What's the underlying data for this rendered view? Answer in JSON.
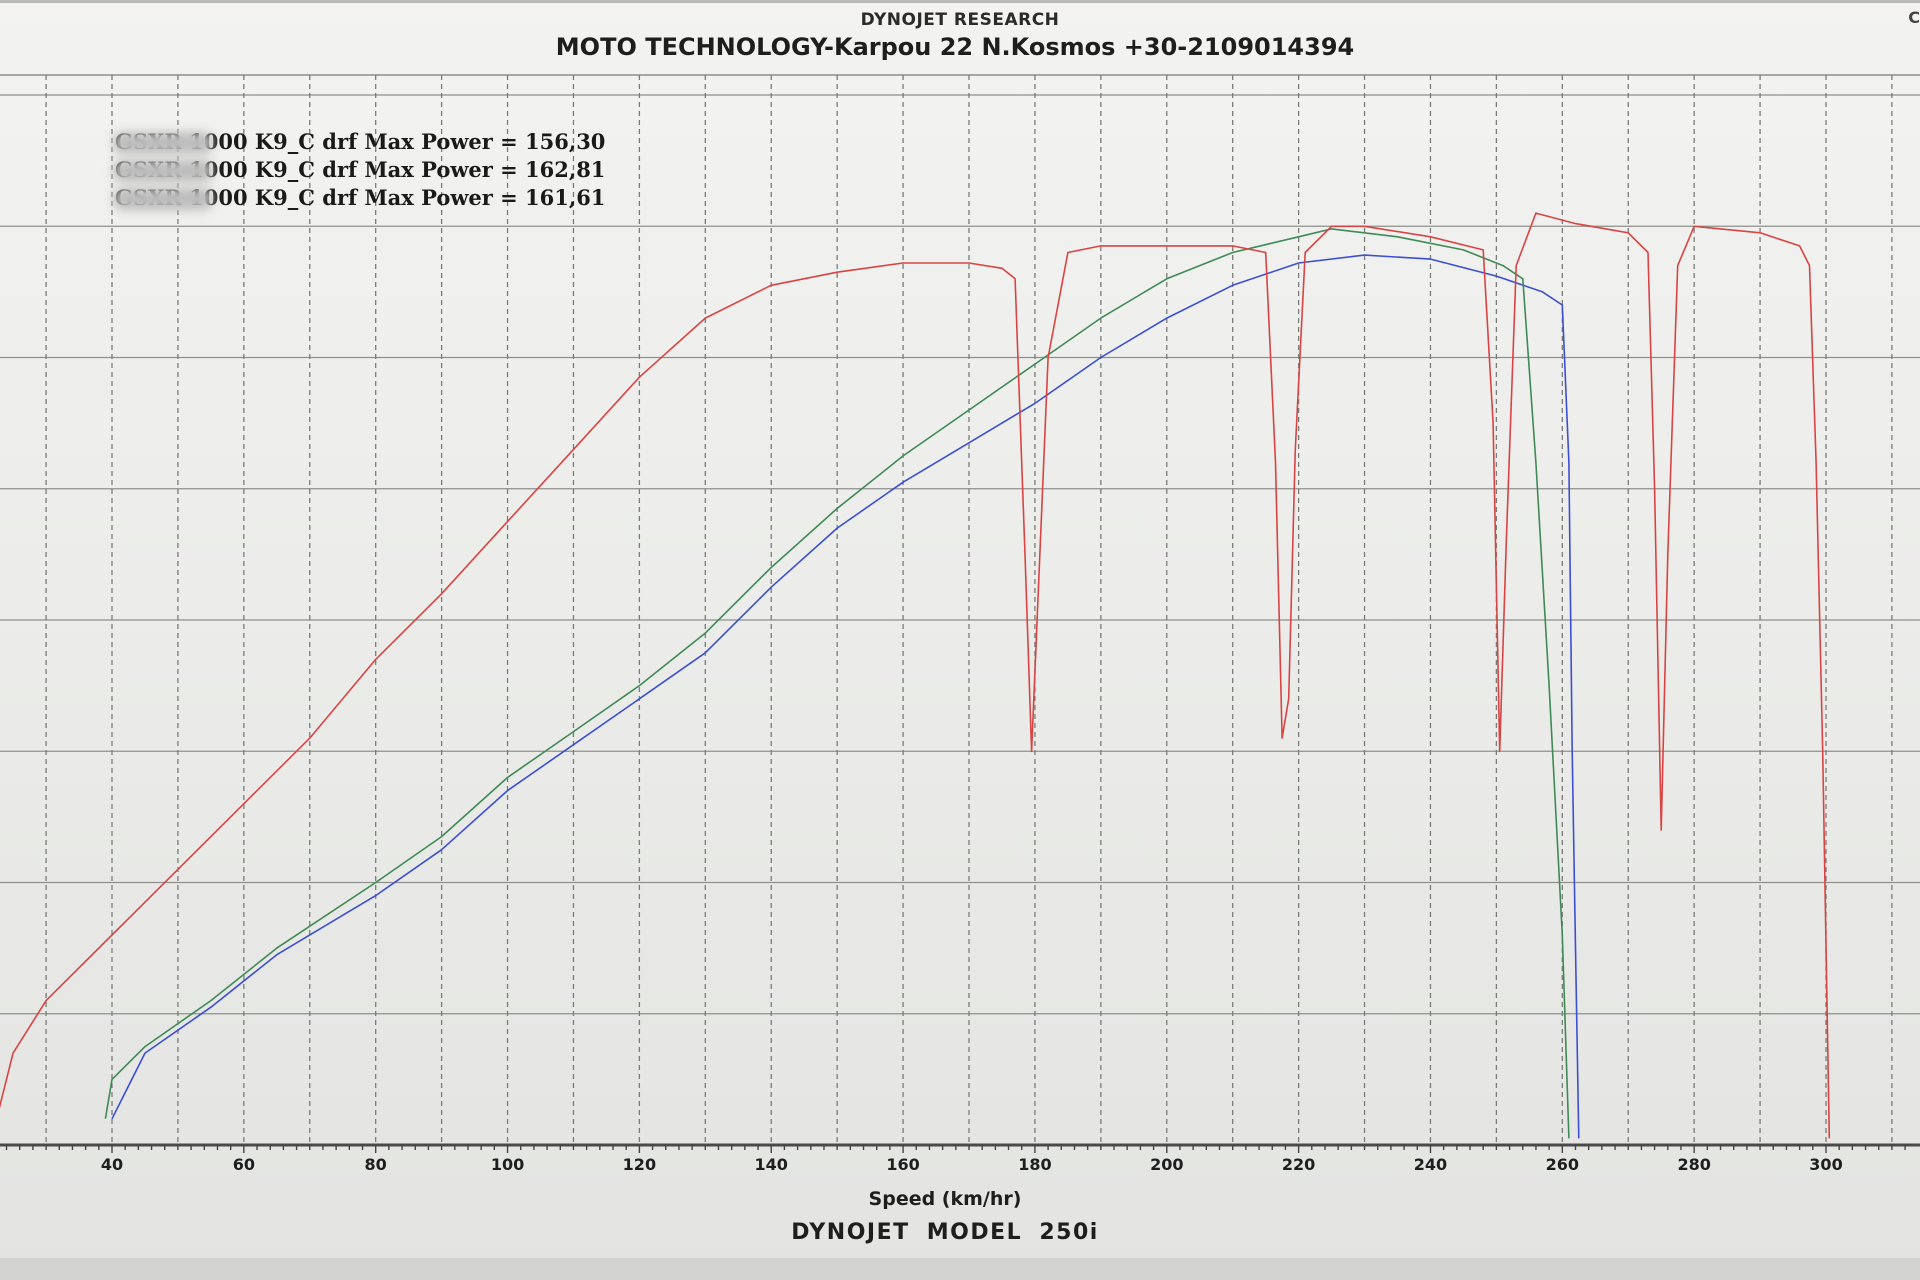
{
  "header": {
    "company": "DYNOJET RESEARCH",
    "corner_mark": "C"
  },
  "footer": {
    "model": "DYNOJET MODEL 250i"
  },
  "chart_data": {
    "type": "line",
    "title": "MOTO TECHNOLOGY-Karpou 22 N.Kosmos +30-2109014394",
    "xlabel": "Speed (km/hr)",
    "ylabel": "",
    "xlim": [
      22,
      312
    ],
    "ylim": [
      0,
      8
    ],
    "x_ticks": [
      40,
      60,
      80,
      100,
      120,
      140,
      160,
      180,
      200,
      220,
      240,
      260,
      280,
      300
    ],
    "grid": true,
    "legend_position": "top-left",
    "series": [
      {
        "name": "GSXR 1000 K9_C drf",
        "max_power_label": " Max Power = 156,30",
        "color": "#3c4fd0",
        "points": [
          [
            40,
            0.2
          ],
          [
            45,
            0.7
          ],
          [
            55,
            1.05
          ],
          [
            65,
            1.45
          ],
          [
            80,
            1.9
          ],
          [
            90,
            2.25
          ],
          [
            100,
            2.7
          ],
          [
            110,
            3.05
          ],
          [
            120,
            3.4
          ],
          [
            130,
            3.75
          ],
          [
            140,
            4.25
          ],
          [
            150,
            4.7
          ],
          [
            160,
            5.05
          ],
          [
            170,
            5.35
          ],
          [
            180,
            5.65
          ],
          [
            190,
            6.0
          ],
          [
            200,
            6.3
          ],
          [
            210,
            6.55
          ],
          [
            220,
            6.72
          ],
          [
            230,
            6.78
          ],
          [
            240,
            6.75
          ],
          [
            250,
            6.62
          ],
          [
            257,
            6.5
          ],
          [
            260,
            6.4
          ],
          [
            261,
            5.2
          ],
          [
            261.5,
            3
          ],
          [
            262,
            1.5
          ],
          [
            262.5,
            0.05
          ]
        ]
      },
      {
        "name": "GSXR 1000 K9_C drf",
        "max_power_label": " Max Power = 162,81",
        "color": "#3f8a55",
        "points": [
          [
            39,
            0.2
          ],
          [
            40,
            0.5
          ],
          [
            45,
            0.75
          ],
          [
            55,
            1.1
          ],
          [
            65,
            1.5
          ],
          [
            80,
            2.0
          ],
          [
            90,
            2.35
          ],
          [
            100,
            2.8
          ],
          [
            110,
            3.15
          ],
          [
            120,
            3.5
          ],
          [
            130,
            3.9
          ],
          [
            140,
            4.4
          ],
          [
            150,
            4.85
          ],
          [
            160,
            5.25
          ],
          [
            170,
            5.6
          ],
          [
            180,
            5.95
          ],
          [
            190,
            6.3
          ],
          [
            200,
            6.6
          ],
          [
            210,
            6.8
          ],
          [
            220,
            6.92
          ],
          [
            225,
            6.98
          ],
          [
            235,
            6.92
          ],
          [
            245,
            6.82
          ],
          [
            251,
            6.7
          ],
          [
            254,
            6.6
          ],
          [
            256,
            5.2
          ],
          [
            258,
            3.5
          ],
          [
            260,
            1.6
          ],
          [
            261,
            0.05
          ]
        ]
      },
      {
        "name": "GSXR 1000 K9_C drf",
        "max_power_label": " Max Power = 161,61",
        "color": "#d84444",
        "points": [
          [
            22,
            0.1
          ],
          [
            25,
            0.7
          ],
          [
            30,
            1.1
          ],
          [
            40,
            1.6
          ],
          [
            50,
            2.1
          ],
          [
            60,
            2.6
          ],
          [
            70,
            3.1
          ],
          [
            80,
            3.7
          ],
          [
            90,
            4.2
          ],
          [
            100,
            4.75
          ],
          [
            110,
            5.3
          ],
          [
            120,
            5.85
          ],
          [
            130,
            6.3
          ],
          [
            140,
            6.55
          ],
          [
            150,
            6.65
          ],
          [
            160,
            6.72
          ],
          [
            170,
            6.72
          ],
          [
            175,
            6.68
          ],
          [
            177,
            6.6
          ],
          [
            178.5,
            4.5
          ],
          [
            179.5,
            3.0
          ],
          [
            180.5,
            4.2
          ],
          [
            182,
            6.0
          ],
          [
            185,
            6.8
          ],
          [
            190,
            6.85
          ],
          [
            200,
            6.85
          ],
          [
            210,
            6.85
          ],
          [
            215,
            6.8
          ],
          [
            216.5,
            5.2
          ],
          [
            217.5,
            3.1
          ],
          [
            218.5,
            3.4
          ],
          [
            219.5,
            5.3
          ],
          [
            221,
            6.8
          ],
          [
            225,
            7.0
          ],
          [
            230,
            7.0
          ],
          [
            240,
            6.92
          ],
          [
            248,
            6.82
          ],
          [
            249.5,
            5.5
          ],
          [
            250.5,
            3.0
          ],
          [
            251.5,
            4.6
          ],
          [
            253,
            6.7
          ],
          [
            256,
            7.1
          ],
          [
            262,
            7.02
          ],
          [
            270,
            6.95
          ],
          [
            273,
            6.8
          ],
          [
            274,
            5.0
          ],
          [
            275,
            2.4
          ],
          [
            276,
            4.5
          ],
          [
            277.5,
            6.7
          ],
          [
            280,
            7.0
          ],
          [
            290,
            6.95
          ],
          [
            296,
            6.85
          ],
          [
            297.5,
            6.7
          ],
          [
            298.5,
            5.2
          ],
          [
            299.5,
            3.0
          ],
          [
            300.5,
            0.05
          ]
        ]
      }
    ]
  }
}
